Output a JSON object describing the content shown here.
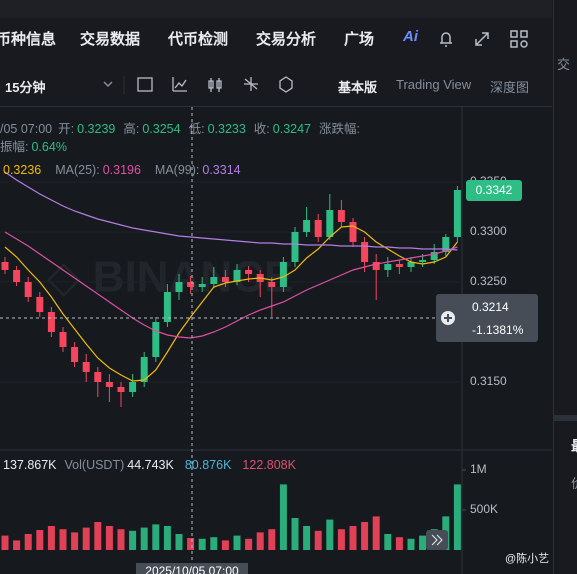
{
  "nav": {
    "tabs": [
      "币种信息",
      "交易数据",
      "代币检测",
      "交易分析",
      "广场"
    ],
    "ai": "Ai"
  },
  "toolbar": {
    "interval": "15分钟",
    "modes": [
      "基本版",
      "Trading View",
      "深度图"
    ]
  },
  "info": {
    "time": "/05 07:00",
    "ohlc": [
      {
        "label": "开:",
        "value": "0.3239"
      },
      {
        "label": "高:",
        "value": "0.3254"
      },
      {
        "label": "低:",
        "value": "0.3233"
      },
      {
        "label": "收:",
        "value": "0.3247"
      }
    ],
    "change_label": "涨跌幅:",
    "amplitude_label": "振幅:",
    "amplitude": "0.64%",
    "ma": [
      {
        "label": "",
        "value": "0.3236",
        "color": "#f0b90b"
      },
      {
        "label": "MA(25):",
        "value": "0.3196",
        "color": "#e04fa3"
      },
      {
        "label": "MA(99):",
        "value": "0.3314",
        "color": "#b47ee6"
      }
    ]
  },
  "volume_info": [
    {
      "label": "",
      "value": "137.867K",
      "color": "#eaecef"
    },
    {
      "label": "Vol(USDT)",
      "value": "44.743K",
      "color": "#eaecef"
    },
    {
      "label": "",
      "value": "80.876K",
      "color": "#4fb5d6"
    },
    {
      "label": "",
      "value": "122.808K",
      "color": "#e04f6f"
    }
  ],
  "last_price": "0.3342",
  "crosshair": {
    "price": "0.3214",
    "change": "-1.1381%",
    "time": "2025/10/05 07:00"
  },
  "watermark": "@陈小艺",
  "side_panel": [
    "交",
    "最",
    "价"
  ],
  "chart_data": {
    "type": "candlestick",
    "ylim": [
      0.3082,
      0.3377
    ],
    "yticks": [
      {
        "value": 0.315,
        "label": "0.3150"
      },
      {
        "value": 0.325,
        "label": "0.3250"
      },
      {
        "value": 0.33,
        "label": "0.3300"
      },
      {
        "value": 0.335,
        "label": "0.3350"
      }
    ],
    "up_color": "#2ebd85",
    "down_color": "#f6465d",
    "candles": [
      [
        0.327,
        0.3275,
        0.3258,
        0.3262
      ],
      [
        0.3262,
        0.3266,
        0.3246,
        0.325
      ],
      [
        0.325,
        0.3255,
        0.323,
        0.3235
      ],
      [
        0.3235,
        0.324,
        0.3215,
        0.322
      ],
      [
        0.322,
        0.3225,
        0.3195,
        0.32
      ],
      [
        0.32,
        0.3205,
        0.318,
        0.3185
      ],
      [
        0.3185,
        0.319,
        0.3165,
        0.317
      ],
      [
        0.317,
        0.3178,
        0.315,
        0.316
      ],
      [
        0.316,
        0.3165,
        0.3135,
        0.315
      ],
      [
        0.315,
        0.3158,
        0.313,
        0.3145
      ],
      [
        0.3145,
        0.315,
        0.3125,
        0.314
      ],
      [
        0.314,
        0.3158,
        0.3135,
        0.315
      ],
      [
        0.315,
        0.318,
        0.3145,
        0.3175
      ],
      [
        0.3175,
        0.3215,
        0.317,
        0.321
      ],
      [
        0.321,
        0.3248,
        0.3205,
        0.324
      ],
      [
        0.324,
        0.3258,
        0.3232,
        0.325
      ],
      [
        0.325,
        0.3256,
        0.3238,
        0.3245
      ],
      [
        0.3245,
        0.3255,
        0.324,
        0.3248
      ],
      [
        0.3248,
        0.3265,
        0.3244,
        0.3255
      ],
      [
        0.3255,
        0.3262,
        0.3245,
        0.325
      ],
      [
        0.325,
        0.3268,
        0.3247,
        0.3262
      ],
      [
        0.3262,
        0.3266,
        0.325,
        0.3258
      ],
      [
        0.3258,
        0.3262,
        0.3235,
        0.325
      ],
      [
        0.325,
        0.3255,
        0.3215,
        0.3245
      ],
      [
        0.3245,
        0.3275,
        0.324,
        0.327
      ],
      [
        0.327,
        0.3305,
        0.3265,
        0.33
      ],
      [
        0.33,
        0.3325,
        0.3295,
        0.3312
      ],
      [
        0.3312,
        0.3318,
        0.329,
        0.3295
      ],
      [
        0.3295,
        0.3338,
        0.3292,
        0.3322
      ],
      [
        0.3322,
        0.3332,
        0.3305,
        0.331
      ],
      [
        0.331,
        0.3314,
        0.3285,
        0.329
      ],
      [
        0.329,
        0.3295,
        0.326,
        0.327
      ],
      [
        0.327,
        0.3278,
        0.3232,
        0.3262
      ],
      [
        0.3262,
        0.3275,
        0.3255,
        0.3268
      ],
      [
        0.3268,
        0.3272,
        0.3258,
        0.3265
      ],
      [
        0.3265,
        0.3275,
        0.326,
        0.327
      ],
      [
        0.327,
        0.3278,
        0.3265,
        0.3272
      ],
      [
        0.3272,
        0.3288,
        0.3268,
        0.328
      ],
      [
        0.328,
        0.3298,
        0.3276,
        0.3295
      ],
      [
        0.3295,
        0.3346,
        0.329,
        0.3342
      ]
    ],
    "ma_series": [
      {
        "name": "MA7",
        "color": "#f0b90b",
        "values": [
          0.3285,
          0.3275,
          0.3262,
          0.325,
          0.3235,
          0.3218,
          0.3203,
          0.3188,
          0.3174,
          0.3164,
          0.3157,
          0.3151,
          0.3152,
          0.3162,
          0.318,
          0.3199,
          0.3215,
          0.323,
          0.3245,
          0.3249,
          0.3251,
          0.3253,
          0.3254,
          0.3252,
          0.3255,
          0.3262,
          0.3274,
          0.3283,
          0.3295,
          0.3305,
          0.3306,
          0.33,
          0.329,
          0.3283,
          0.3276,
          0.327,
          0.3268,
          0.327,
          0.3275,
          0.329
        ]
      },
      {
        "name": "MA25",
        "color": "#e04fa3",
        "values": [
          0.33,
          0.3293,
          0.3286,
          0.3278,
          0.327,
          0.3262,
          0.3254,
          0.3246,
          0.3238,
          0.323,
          0.3222,
          0.3214,
          0.3207,
          0.3201,
          0.3197,
          0.3195,
          0.3194,
          0.3196,
          0.32,
          0.3205,
          0.3211,
          0.3217,
          0.3222,
          0.3226,
          0.323,
          0.3236,
          0.3242,
          0.3247,
          0.3252,
          0.3257,
          0.3262,
          0.3265,
          0.3268,
          0.327,
          0.3272,
          0.3274,
          0.3276,
          0.3278,
          0.3281,
          0.3285
        ]
      },
      {
        "name": "MA99",
        "color": "#b47ee6",
        "values": [
          0.336,
          0.3352,
          0.3345,
          0.3338,
          0.3332,
          0.3326,
          0.3321,
          0.3317,
          0.3313,
          0.331,
          0.3307,
          0.3304,
          0.3302,
          0.33,
          0.3298,
          0.3296,
          0.3295,
          0.3294,
          0.3293,
          0.3292,
          0.3291,
          0.329,
          0.3289,
          0.3289,
          0.3288,
          0.3288,
          0.3287,
          0.3287,
          0.3287,
          0.3286,
          0.3286,
          0.3286,
          0.3285,
          0.3285,
          0.3284,
          0.3284,
          0.3283,
          0.3283,
          0.3283,
          0.3282
        ]
      }
    ],
    "volumes": [
      180000,
      120000,
      200000,
      250000,
      300000,
      260000,
      220000,
      280000,
      350000,
      300000,
      260000,
      240000,
      280000,
      320000,
      300000,
      200000,
      150000,
      140000,
      160000,
      120000,
      180000,
      140000,
      220000,
      260000,
      820000,
      400000,
      300000,
      240000,
      380000,
      260000,
      300000,
      350000,
      420000,
      200000,
      160000,
      140000,
      180000,
      260000,
      420000,
      820000
    ],
    "vlim": [
      0,
      1187500
    ],
    "vticks": [
      {
        "value": 1000000,
        "label": "1M"
      },
      {
        "value": 500000,
        "label": "500K"
      }
    ]
  }
}
